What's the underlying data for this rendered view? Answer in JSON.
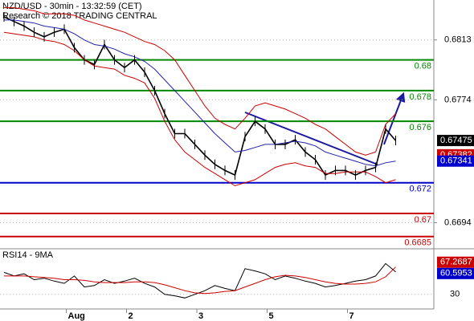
{
  "chart_data": {
    "type": "price",
    "title": "NZD/USD - 30min - 13:32:59 (CET)",
    "subtitle": "Research © 2018 TRADING CENTRAL",
    "categories": [
      null,
      null,
      null,
      null,
      null,
      null,
      null,
      "Aug",
      null,
      null,
      null,
      null,
      null,
      "2",
      null,
      null,
      null,
      null,
      null,
      null,
      "3",
      null,
      null,
      null,
      null,
      null,
      null,
      "5",
      null,
      null,
      null,
      null,
      null,
      null,
      null,
      "7",
      null,
      null,
      null,
      null
    ],
    "ylim": [
      0.6677,
      0.6839
    ],
    "yticks": [
      0.6813,
      0.6774,
      0.6694
    ],
    "grid": true,
    "series": [
      {
        "name": "close",
        "color": "#000000",
        "values": [
          0.6828,
          0.6825,
          0.6822,
          0.6818,
          0.6815,
          0.6818,
          0.682,
          0.6808,
          0.68,
          0.6797,
          0.681,
          0.68,
          0.6795,
          0.68,
          0.6792,
          0.678,
          0.6765,
          0.6752,
          0.6752,
          0.6745,
          0.6738,
          0.6732,
          0.6728,
          0.6725,
          0.675,
          0.676,
          0.6755,
          0.6745,
          0.6745,
          0.6748,
          0.674,
          0.6735,
          0.6725,
          0.6728,
          0.6728,
          0.6725,
          0.6728,
          0.673,
          0.6755,
          0.67475
        ]
      },
      {
        "name": "ma",
        "color": "#2222aa",
        "values": [
          0.6826,
          0.6826,
          0.6825,
          0.6824,
          0.6822,
          0.6821,
          0.682,
          0.6817,
          0.6813,
          0.681,
          0.6809,
          0.6807,
          0.6804,
          0.6802,
          0.6799,
          0.6794,
          0.6787,
          0.678,
          0.6773,
          0.6766,
          0.6759,
          0.6752,
          0.6746,
          0.674,
          0.6741,
          0.6743,
          0.6745,
          0.6745,
          0.6746,
          0.6747,
          0.6746,
          0.6744,
          0.674,
          0.6738,
          0.6736,
          0.6734,
          0.6732,
          0.6731,
          0.6733,
          0.67341
        ]
      },
      {
        "name": "upper",
        "color": "#cc0000",
        "values": [
          0.6834,
          0.6834,
          0.6833,
          0.6832,
          0.683,
          0.683,
          0.683,
          0.6829,
          0.6826,
          0.6824,
          0.6822,
          0.682,
          0.6818,
          0.6815,
          0.6812,
          0.681,
          0.6806,
          0.68,
          0.679,
          0.678,
          0.677,
          0.6762,
          0.6758,
          0.6755,
          0.6762,
          0.677,
          0.6772,
          0.677,
          0.6768,
          0.6765,
          0.6762,
          0.6758,
          0.6755,
          0.675,
          0.6745,
          0.674,
          0.6738,
          0.674,
          0.6758,
          0.6765
        ]
      },
      {
        "name": "lower",
        "color": "#cc0000",
        "values": [
          0.6818,
          0.6817,
          0.6816,
          0.6815,
          0.6813,
          0.6812,
          0.681,
          0.6806,
          0.68,
          0.6796,
          0.6795,
          0.6794,
          0.679,
          0.6788,
          0.6785,
          0.6775,
          0.676,
          0.6748,
          0.674,
          0.6735,
          0.673,
          0.6726,
          0.6722,
          0.6718,
          0.672,
          0.6722,
          0.6726,
          0.673,
          0.6732,
          0.6733,
          0.6731,
          0.673,
          0.6726,
          0.6726,
          0.6727,
          0.6727,
          0.6727,
          0.6724,
          0.672,
          0.6722
        ]
      }
    ],
    "levels": [
      {
        "value": 0.68,
        "color": "#008800"
      },
      {
        "value": 0.678,
        "color": "#008800"
      },
      {
        "value": 0.676,
        "color": "#008800"
      },
      {
        "value": 0.672,
        "color": "#0000cc"
      },
      {
        "value": 0.67,
        "color": "#cc0000"
      },
      {
        "value": 0.6685,
        "color": "#cc0000"
      }
    ],
    "price_boxes": [
      {
        "value": 0.67475,
        "color": "#000000"
      },
      {
        "value": 0.67382,
        "color": "#cc0000"
      },
      {
        "value": 0.67341,
        "color": "#0000cc"
      }
    ],
    "rsi": {
      "title": "RSI14 - 9MA",
      "ylim": [
        10,
        90
      ],
      "yticks": [
        30
      ],
      "series": [
        {
          "name": "rsi",
          "color": "#000000",
          "values": [
            60,
            55,
            58,
            50,
            52,
            48,
            45,
            55,
            40,
            42,
            50,
            45,
            48,
            52,
            45,
            40,
            30,
            28,
            25,
            30,
            35,
            42,
            38,
            35,
            65,
            62,
            58,
            50,
            55,
            52,
            48,
            45,
            40,
            42,
            45,
            48,
            50,
            55,
            72,
            60.5953
          ]
        },
        {
          "name": "ma",
          "color": "#cc0000",
          "values": [
            55,
            55,
            55,
            54,
            53,
            52,
            50,
            50,
            49,
            47,
            46,
            46,
            46,
            47,
            47,
            46,
            43,
            39,
            35,
            32,
            31,
            32,
            34,
            35,
            40,
            45,
            50,
            54,
            56,
            55,
            53,
            50,
            47,
            45,
            44,
            44,
            45,
            47,
            54,
            67.2687
          ]
        }
      ],
      "boxes": [
        {
          "value": 67.2687,
          "color": "#cc0000"
        },
        {
          "value": 60.5953,
          "color": "#0000cc"
        }
      ]
    }
  }
}
